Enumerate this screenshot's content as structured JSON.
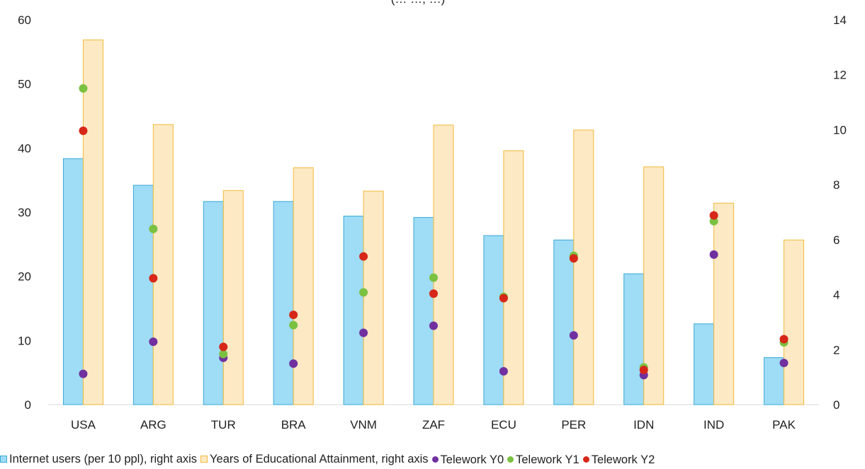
{
  "chart_data": {
    "type": "bar",
    "title": "(… …, …)",
    "categories": [
      "USA",
      "ARG",
      "TUR",
      "BRA",
      "VNM",
      "ZAF",
      "ECU",
      "PER",
      "IDN",
      "IND",
      "PAK"
    ],
    "left_axis": {
      "ylim": [
        0,
        60
      ],
      "ticks": [
        "0",
        "10",
        "20",
        "30",
        "40",
        "50",
        "60"
      ]
    },
    "right_axis": {
      "ylim": [
        0,
        14
      ],
      "ticks": [
        "0",
        "2",
        "4",
        "6",
        "8",
        "10",
        "12",
        "14"
      ]
    },
    "bar_series": [
      {
        "name": "Internet users (per 10 ppl), right axis",
        "axis": "right",
        "fill": "#9fdcf5",
        "stroke": "#3aa8d8",
        "values": [
          8.95,
          7.98,
          7.39,
          7.39,
          6.86,
          6.81,
          6.15,
          5.99,
          4.76,
          2.94,
          1.71
        ]
      },
      {
        "name": "Years of Educational Attainment, right axis",
        "axis": "right",
        "fill": "#fde9c4",
        "stroke": "#f0b93a",
        "values": [
          13.27,
          10.19,
          7.79,
          8.62,
          7.77,
          10.17,
          9.24,
          9.99,
          8.65,
          7.33,
          5.99
        ]
      }
    ],
    "dot_series": [
      {
        "name": "Telework Y0",
        "axis": "left",
        "color": "#7030a0",
        "values": [
          4.8,
          9.8,
          7.3,
          6.4,
          11.2,
          12.3,
          5.2,
          10.8,
          4.6,
          23.4,
          6.5
        ]
      },
      {
        "name": "Telework Y1",
        "axis": "left",
        "color": "#7ac142",
        "values": [
          49.3,
          27.4,
          7.9,
          12.4,
          17.5,
          19.8,
          16.8,
          23.2,
          5.8,
          28.6,
          9.7
        ]
      },
      {
        "name": "Telework Y2",
        "axis": "left",
        "color": "#d62718",
        "values": [
          42.7,
          19.7,
          9.0,
          14.0,
          23.1,
          17.3,
          16.6,
          22.8,
          5.4,
          29.5,
          10.2
        ]
      }
    ]
  },
  "legend": [
    {
      "label": "Internet users (per 10 ppl), right axis",
      "shape": "square",
      "fill": "#9fdcf5",
      "stroke": "#3aa8d8"
    },
    {
      "label": "Years of Educational Attainment, right axis",
      "shape": "square",
      "fill": "#fde9c4",
      "stroke": "#f0b93a"
    },
    {
      "label": "Telework Y0",
      "shape": "dot",
      "fill": "#7030a0"
    },
    {
      "label": "Telework Y1",
      "shape": "dot",
      "fill": "#7ac142"
    },
    {
      "label": "Telework Y2",
      "shape": "dot",
      "fill": "#d62718"
    }
  ]
}
